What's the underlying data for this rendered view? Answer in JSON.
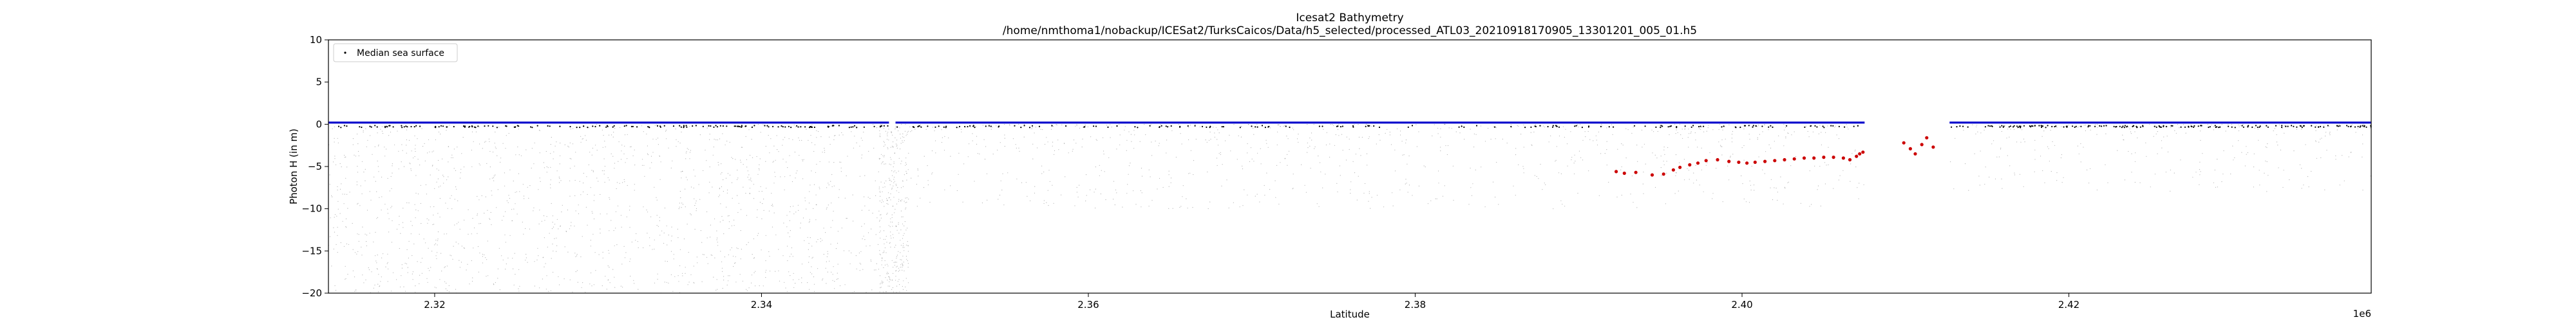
{
  "chart_data": {
    "type": "scatter",
    "title": "Icesat2 Bathymetry",
    "subtitle": "/home/nmthoma1/nobackup/ICESat2/TurksCaicos/Data/h5_selected/processed_ATL03_20210918170905_13301201_005_01.h5",
    "xlabel": "Latitude",
    "ylabel": "Photon H (in m)",
    "x_offset_label": "1e6",
    "xlim": [
      2.3135,
      2.4385
    ],
    "ylim": [
      -20,
      10
    ],
    "x_ticks": [
      2.32,
      2.34,
      2.36,
      2.38,
      2.4,
      2.42
    ],
    "x_tick_labels": [
      "2.32",
      "2.34",
      "2.36",
      "2.38",
      "2.40",
      "2.42"
    ],
    "y_ticks": [
      -20,
      -15,
      -10,
      -5,
      0,
      5,
      10
    ],
    "y_tick_labels": [
      "−20",
      "−15",
      "−10",
      "−5",
      "0",
      "5",
      "10"
    ],
    "grid": false,
    "legend": {
      "placement": "top-left",
      "entries": [
        {
          "label": "Median sea surface",
          "marker": "dot",
          "color": "#000000"
        }
      ]
    },
    "series": [
      {
        "name": "Median sea surface",
        "color": "#0000cc",
        "segments": [
          {
            "x": [
              2.3135,
              2.3478
            ],
            "y": [
              0.2,
              0.2
            ]
          },
          {
            "x": [
              2.3482,
              2.4075
            ],
            "y": [
              0.2,
              0.2
            ]
          },
          {
            "x": [
              2.4127,
              2.4385
            ],
            "y": [
              0.2,
              0.2
            ]
          }
        ]
      },
      {
        "color": "#cc0000",
        "x": [
          2.3923,
          2.3928,
          2.3935,
          2.3945,
          2.3952,
          2.3958,
          2.3962,
          2.3968,
          2.3973,
          2.3978,
          2.3985,
          2.3992,
          2.3998,
          2.4003,
          2.4008,
          2.4014,
          2.402,
          2.4026,
          2.4032,
          2.4038,
          2.4044,
          2.405,
          2.4056,
          2.4062,
          2.4066,
          2.407,
          2.4072,
          2.4074,
          2.4099,
          2.4103,
          2.4106,
          2.411,
          2.4113,
          2.4117
        ],
        "y": [
          -5.6,
          -5.8,
          -5.7,
          -6.0,
          -5.9,
          -5.4,
          -5.1,
          -4.8,
          -4.6,
          -4.3,
          -4.2,
          -4.4,
          -4.5,
          -4.6,
          -4.5,
          -4.4,
          -4.3,
          -4.2,
          -4.1,
          -4.0,
          -4.0,
          -3.9,
          -3.9,
          -4.0,
          -4.2,
          -3.8,
          -3.5,
          -3.3,
          -2.2,
          -2.9,
          -3.5,
          -2.4,
          -1.6,
          -2.7
        ]
      },
      {
        "color": "#777777",
        "x_range": [
          2.3135,
          2.4385
        ],
        "y_range": [
          -20,
          0
        ]
      }
    ]
  }
}
